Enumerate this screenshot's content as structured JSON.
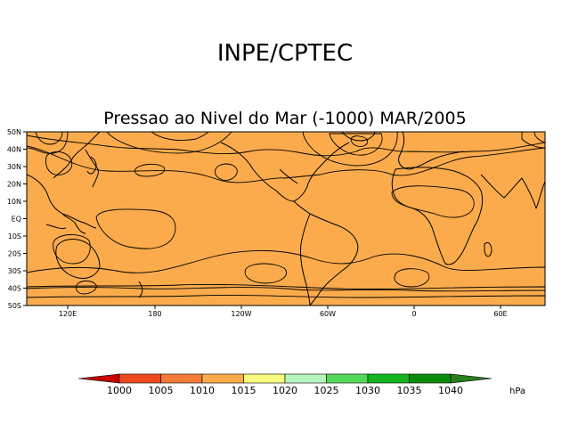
{
  "header": {
    "title": "INPE/CPTEC",
    "subtitle": "Pressao ao Nivel do Mar (-1000) MAR/2005"
  },
  "map": {
    "lat_labels": [
      "50N",
      "40N",
      "30N",
      "20N",
      "10N",
      "EQ",
      "10S",
      "20S",
      "30S",
      "40S",
      "50S"
    ],
    "lon_labels": [
      "120E",
      "180",
      "120W",
      "60W",
      "0",
      "60E"
    ]
  },
  "colorbar": {
    "levels": [
      "1000",
      "1005",
      "1010",
      "1015",
      "1020",
      "1025",
      "1030",
      "1035",
      "1040"
    ],
    "colors": [
      "#c80000",
      "#ee4a1e",
      "#f57a35",
      "#fbab4c",
      "#fafa7c",
      "#b7f5c0",
      "#53d95a",
      "#14b41e",
      "#098c0a",
      "#2a7d1e"
    ],
    "unit": "hPa"
  },
  "palette": {
    "p1005": "#ee4a1e",
    "p1010": "#f57a35",
    "p1015": "#fbab4c",
    "p1020": "#fafa7c",
    "p1025": "#b7f5c0",
    "p1030": "#53d95a",
    "p1000": "#c80000"
  }
}
